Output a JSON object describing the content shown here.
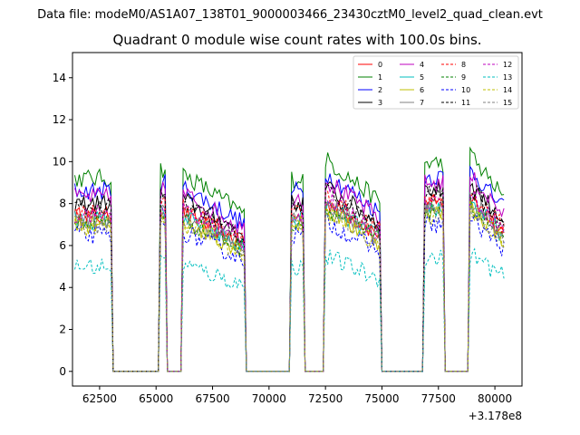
{
  "chart_data": {
    "type": "line",
    "suptitle": "Data file: modeM0/AS1A07_138T01_9000003466_23430cztM0_level2_quad_clean.evt",
    "title": "Quadrant 0 module wise count rates with 100.0s bins.",
    "xlabel": "",
    "ylabel": "",
    "x_offset_label": "+3.178e8",
    "xlim": [
      61300,
      81200
    ],
    "ylim": [
      -0.7,
      15.2
    ],
    "x_ticks": [
      62500,
      65000,
      67500,
      70000,
      72500,
      75000,
      77500,
      80000
    ],
    "x_tick_labels": [
      "62500",
      "65000",
      "67500",
      "70000",
      "72500",
      "75000",
      "77500",
      "80000"
    ],
    "y_ticks": [
      0,
      2,
      4,
      6,
      8,
      10,
      12,
      14
    ],
    "y_tick_labels": [
      "0",
      "2",
      "4",
      "6",
      "8",
      "10",
      "12",
      "14"
    ],
    "legend_position": "top-right",
    "bin_seconds": 100,
    "segments": [
      {
        "start": 61400,
        "end": 63000
      },
      {
        "start": 65200,
        "end": 65400
      },
      {
        "start": 66200,
        "end": 68900
      },
      {
        "start": 71000,
        "end": 71500
      },
      {
        "start": 72500,
        "end": 74900
      },
      {
        "start": 76900,
        "end": 77700
      },
      {
        "start": 78900,
        "end": 80400
      }
    ],
    "gap_value": 0,
    "segment_profile": [
      1.0,
      1.05,
      0.93,
      1.0,
      1.0,
      1.08,
      1.02
    ],
    "series": [
      {
        "name": "0",
        "color": "#ff0000",
        "dash": "solid",
        "level": 7.4
      },
      {
        "name": "1",
        "color": "#008000",
        "dash": "solid",
        "level": 9.2
      },
      {
        "name": "2",
        "color": "#0000ff",
        "dash": "solid",
        "level": 8.6
      },
      {
        "name": "3",
        "color": "#000000",
        "dash": "solid",
        "level": 8.0
      },
      {
        "name": "4",
        "color": "#bf00bf",
        "dash": "solid",
        "level": 8.3
      },
      {
        "name": "5",
        "color": "#00bfbf",
        "dash": "solid",
        "level": 7.2
      },
      {
        "name": "6",
        "color": "#bfbf00",
        "dash": "solid",
        "level": 7.0
      },
      {
        "name": "7",
        "color": "#808080",
        "dash": "solid",
        "level": 7.3
      },
      {
        "name": "8",
        "color": "#ff0000",
        "dash": "dashed",
        "level": 7.6
      },
      {
        "name": "9",
        "color": "#008000",
        "dash": "dashed",
        "level": 7.1
      },
      {
        "name": "10",
        "color": "#0000ff",
        "dash": "dashed",
        "level": 6.5
      },
      {
        "name": "11",
        "color": "#000000",
        "dash": "dashed",
        "level": 7.8
      },
      {
        "name": "12",
        "color": "#bf00bf",
        "dash": "dashed",
        "level": 7.5
      },
      {
        "name": "13",
        "color": "#00bfbf",
        "dash": "dashed",
        "level": 5.0
      },
      {
        "name": "14",
        "color": "#bfbf00",
        "dash": "dashed",
        "level": 6.9
      },
      {
        "name": "15",
        "color": "#808080",
        "dash": "dashed",
        "level": 7.0
      }
    ]
  }
}
